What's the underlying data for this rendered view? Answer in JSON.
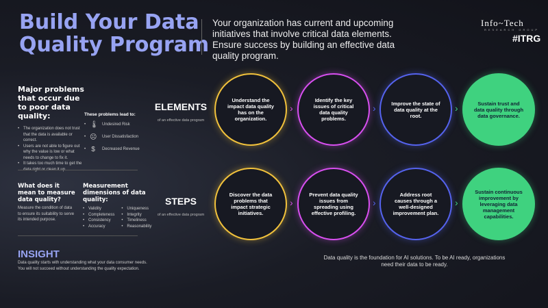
{
  "header": {
    "title_line1": "Build Your Data",
    "title_line2": "Quality Program",
    "intro": "Your organization has current and upcoming initiatives that involve critical data elements. Ensure success by building an effective data quality program.",
    "logo_main": "Info~Tech",
    "logo_sub": "RESEARCH GROUP",
    "logo_badge": "#ITRG"
  },
  "problems": {
    "heading": "Major problems that occur due to poor data quality:",
    "bullets": [
      "The organization does not trust that the data is available or correct.",
      "Users are not able to figure out why the value is low or what needs to change to fix it.",
      "It takes too much time to get the data right or clean it up."
    ],
    "lead_heading": "These problems lead to:",
    "leads": [
      {
        "icon": "thermometer-icon",
        "label": "Undesired Risk"
      },
      {
        "icon": "frown-icon",
        "label": "User Dissatisfaction"
      },
      {
        "icon": "dollar-icon",
        "label": "Decreased Revenue"
      }
    ]
  },
  "measure": {
    "heading": "What does it mean to measure data quality?",
    "text": "Measure the condition of data to ensure its suitability to serve its intended purpose.",
    "dim_heading": "Measurement dimensions of data quality:",
    "dims_col1": [
      "Validity",
      "Completeness",
      "Consistency",
      "Accuracy"
    ],
    "dims_col2": [
      "Uniqueness",
      "Integrity",
      "Timeliness",
      "Reasonability"
    ]
  },
  "insight": {
    "heading": "INSIGHT",
    "text": "Data quality starts with understanding what your data consumer needs. You will not succeed without understanding the quality expectation."
  },
  "rows": [
    {
      "label": "ELEMENTS",
      "sub": "of an effective data program",
      "items": [
        "Understand the impact data quality has on the organization.",
        "Identify the key issues of critical data quality problems.",
        "Improve the state of data quality at the root.",
        "Sustain trust and data quality through data governance."
      ]
    },
    {
      "label": "STEPS",
      "sub": "of an effective data program",
      "items": [
        "Discover the data problems that impact strategic initiatives.",
        "Prevent data quality issues from spreading using effective profiling.",
        "Address root causes through a well-designed improvement plan.",
        "Sustain continuous improvement by leveraging data management capabilities."
      ]
    }
  ],
  "colors": [
    "#f2c23c",
    "#d84ff0",
    "#5563ee",
    "#3fd27f"
  ],
  "footer": "Data quality is the foundation for AI solutions. To be AI ready, organizations need their data to be ready."
}
